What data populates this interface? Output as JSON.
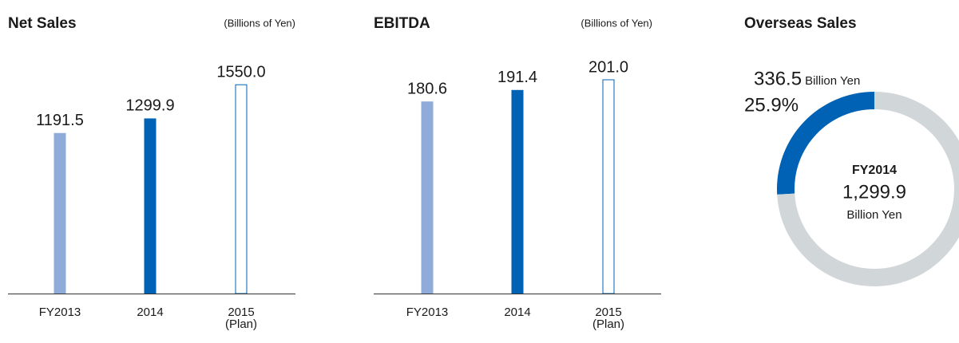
{
  "chart_data": [
    {
      "type": "bar",
      "title": "Net Sales",
      "subtitle": "(Billions of Yen)",
      "categories": [
        "FY2013",
        "2014",
        "2015\n(Plan)"
      ],
      "values": [
        1191.5,
        1299.9,
        1550.0
      ],
      "value_labels": [
        "1191.5",
        "1299.9",
        "1550.0"
      ],
      "colors": [
        "#8eabd9",
        "#0062b4",
        "#0062b4"
      ],
      "filled": [
        true,
        true,
        false
      ],
      "ylim": [
        0,
        1800
      ]
    },
    {
      "type": "bar",
      "title": "EBITDA",
      "subtitle": "(Billions of Yen)",
      "categories": [
        "FY2013",
        "2014",
        "2015\n(Plan)"
      ],
      "values": [
        180.6,
        191.4,
        201.0
      ],
      "value_labels": [
        "180.6",
        "191.4",
        "201.0"
      ],
      "colors": [
        "#8eabd9",
        "#0062b4",
        "#0062b4"
      ],
      "filled": [
        true,
        true,
        false
      ],
      "ylim": [
        0,
        228
      ]
    },
    {
      "type": "donut",
      "title": "Overseas Sales",
      "values": [
        25.9,
        74.1
      ],
      "value_labels": [
        "25.9%",
        null
      ],
      "colors": [
        "#0062b4",
        "#d1d6d9"
      ],
      "amount": 336.5,
      "amount_unit": "Billion Yen",
      "center_title": "FY2014",
      "center_value": "1,299.9",
      "center_unit": "Billion Yen"
    }
  ]
}
